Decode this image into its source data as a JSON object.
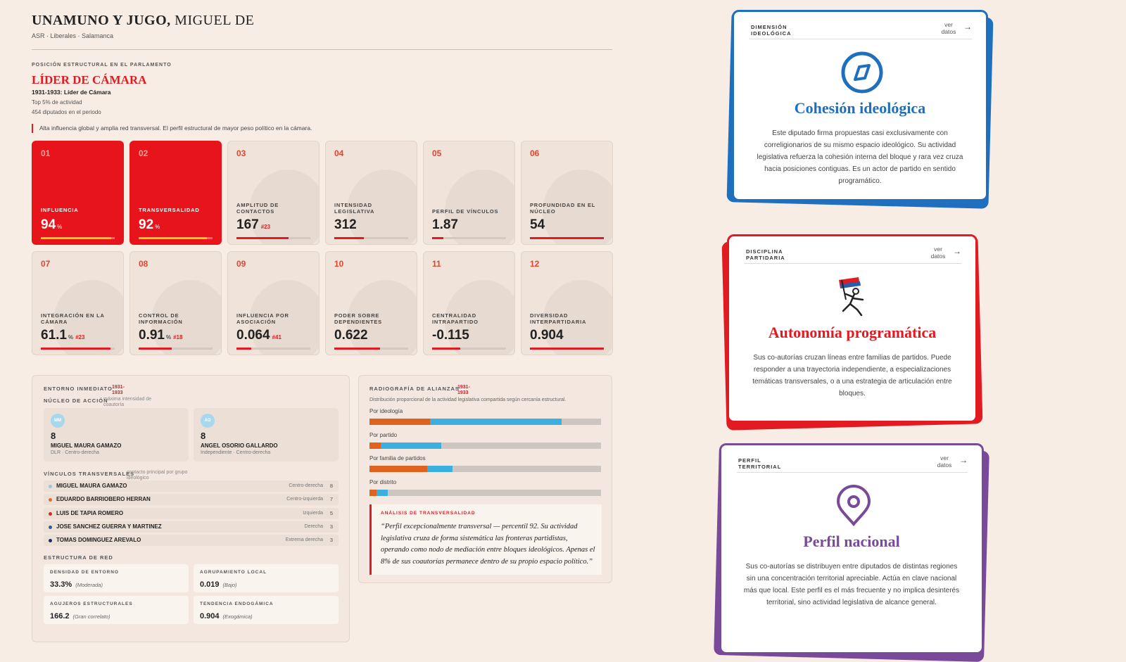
{
  "header": {
    "name": "UNAMUNO Y JUGO,",
    "given": "MIGUEL DE",
    "subtitle": "ASR · Liberales · Salamanca"
  },
  "position": {
    "label": "POSICIÓN ESTRUCTURAL EN EL PARLAMENTO",
    "title": "LÍDER DE CÁMARA",
    "period": "1931-1933: Líder de Cámara",
    "details": [
      "Top 5% de actividad",
      "454 diputados en el periodo"
    ],
    "note": "Alta influencia global y amplia red transversal. El perfil estructural de mayor peso político en la cámara."
  },
  "metrics": [
    {
      "num": "01",
      "label": "INFLUENCIA",
      "value": 94,
      "unit": "%",
      "bar": 95,
      "highlight": true
    },
    {
      "num": "02",
      "label": "TRANSVERSALIDAD",
      "value": 92,
      "unit": "%",
      "bar": 92,
      "highlight": true
    },
    {
      "num": "03",
      "label": "AMPLITUD DE CONTACTOS",
      "value": 167,
      "rank": "#23",
      "bar": 70
    },
    {
      "num": "04",
      "label": "INTENSIDAD LEGISLATIVA",
      "value": 312,
      "bar": 40
    },
    {
      "num": "05",
      "label": "PERFIL DE VÍNCULOS",
      "value": 1.87,
      "bar": 15
    },
    {
      "num": "06",
      "label": "PROFUNDIDAD EN EL NÚCLEO",
      "value": 54,
      "bar": 100
    },
    {
      "num": "07",
      "label": "INTEGRACIÓN EN LA CÁMARA",
      "value": 61.1,
      "unit": "%",
      "rank": "#23",
      "bar": 94
    },
    {
      "num": "08",
      "label": "CONTROL DE INFORMACIÓN",
      "value": 0.91,
      "unit": "%",
      "rank": "#18",
      "bar": 45
    },
    {
      "num": "09",
      "label": "INFLUENCIA POR ASOCIACIÓN",
      "value": 0.064,
      "rank": "#41",
      "bar": 20
    },
    {
      "num": "10",
      "label": "PODER SOBRE DEPENDIENTES",
      "value": 0.622,
      "bar": 62
    },
    {
      "num": "11",
      "label": "CENTRALIDAD INTRAPARTIDO",
      "value": -0.115,
      "bar": 38
    },
    {
      "num": "12",
      "label": "DIVERSIDAD INTERPARTIDARIA",
      "value": 0.904,
      "bar": 100
    }
  ],
  "entorno": {
    "title": "ENTORNO INMEDIATO",
    "period": "1931-1933",
    "core_label": "NÚCLEO DE ACCIÓN",
    "core_hint": "máxima intensidad de coautoría",
    "core": [
      {
        "initials": "MM",
        "count": 8,
        "name": "MIGUEL MAURA GAMAZO",
        "detail": "DLR · Centro-derecha"
      },
      {
        "initials": "AO",
        "count": 8,
        "name": "ANGEL OSORIO GALLARDO",
        "detail": "Independiente · Centro-derecha"
      }
    ],
    "links_label": "VÍNCULOS TRANSVERSALES",
    "links_hint": "contacto principal por grupo ideológico",
    "links": [
      {
        "name": "MIGUEL MAURA GAMAZO",
        "group": "Centro-derecha",
        "count": 8,
        "color": "#8ecae6"
      },
      {
        "name": "EDUARDO BARRIOBERO HERRAN",
        "group": "Centro-izquierda",
        "count": 7,
        "color": "#e86a2a"
      },
      {
        "name": "LUIS DE TAPIA ROMERO",
        "group": "Izquierda",
        "count": 5,
        "color": "#d62828"
      },
      {
        "name": "JOSE SANCHEZ GUERRA Y MARTINEZ",
        "group": "Derecha",
        "count": 3,
        "color": "#2a5ca8"
      },
      {
        "name": "TOMAS DOMINGUEZ AREVALO",
        "group": "Extrema derecha",
        "count": 3,
        "color": "#1d2d6b"
      }
    ],
    "structure_label": "ESTRUCTURA DE RED",
    "structure": [
      {
        "label": "DENSIDAD DE ENTORNO",
        "value": "33.3%",
        "note": "(Moderada)"
      },
      {
        "label": "AGRUPAMIENTO LOCAL",
        "value": "0.019",
        "note": "(Bajo)"
      },
      {
        "label": "AGUJEROS ESTRUCTURALES",
        "value": "166.2",
        "note": "(Gran correlato)"
      },
      {
        "label": "TENDENCIA ENDOGÁMICA",
        "value": "0.904",
        "note": "(Exogámica)"
      }
    ]
  },
  "alianzas": {
    "title": "RADIOGRAFÍA DE ALIANZAS",
    "period": "1931-1933",
    "description": "Distribución proporcional de la actividad legislativa compartida según cercanía estructural.",
    "colors": [
      "#e0621f",
      "#3bb0e0"
    ],
    "rows": [
      {
        "label": "Por ideología",
        "segments": [
          26,
          57
        ]
      },
      {
        "label": "Por partido",
        "segments": [
          5,
          26
        ]
      },
      {
        "label": "Por familia de partidos",
        "segments": [
          25,
          11
        ]
      },
      {
        "label": "Por distrito",
        "segments": [
          3,
          5
        ]
      }
    ],
    "analysis_label": "ANÁLISIS DE TRANSVERSALIDAD",
    "analysis": "“Perfil excepcionalmente transversal — percentil 92. Su actividad legislativa cruza de forma sistemática las fronteras partidistas, operando como nodo de mediación entre bloques ideológicos. Apenas el 8% de sus coautorías permanece dentro de su propio espacio político.”"
  },
  "cards": [
    {
      "category": "DIMENSIÓN IDEOLÓGICA",
      "link": "ver datos",
      "title": "Cohesión ideológica",
      "text": "Este diputado firma propuestas casi exclusivamente con correligionarios de su mismo espacio ideológico. Su actividad legislativa refuerza la cohesión interna del bloque y rara vez cruza hacia posiciones contiguas. Es un actor de partido en sentido programático.",
      "color": "#1f6fbf"
    },
    {
      "category": "DISCIPLINA PARTIDARIA",
      "link": "ver datos",
      "title": "Autonomía programática",
      "text": "Sus co-autorías cruzan líneas entre familias de partidos. Puede responder a una trayectoria independiente, a especializaciones temáticas transversales, o a una estrategia de articulación entre bloques.",
      "color": "#e21b23"
    },
    {
      "category": "PERFIL TERRITORIAL",
      "link": "ver datos",
      "title": "Perfil nacional",
      "text": "Sus co-autorías se distribuyen entre diputados de distintas regiones sin una concentración territorial apreciable. Actúa en clave nacional más que local. Este perfil es el más frecuente y no implica desinterés territorial, sino actividad legislativa de alcance general.",
      "color": "#7a4a9a"
    }
  ]
}
